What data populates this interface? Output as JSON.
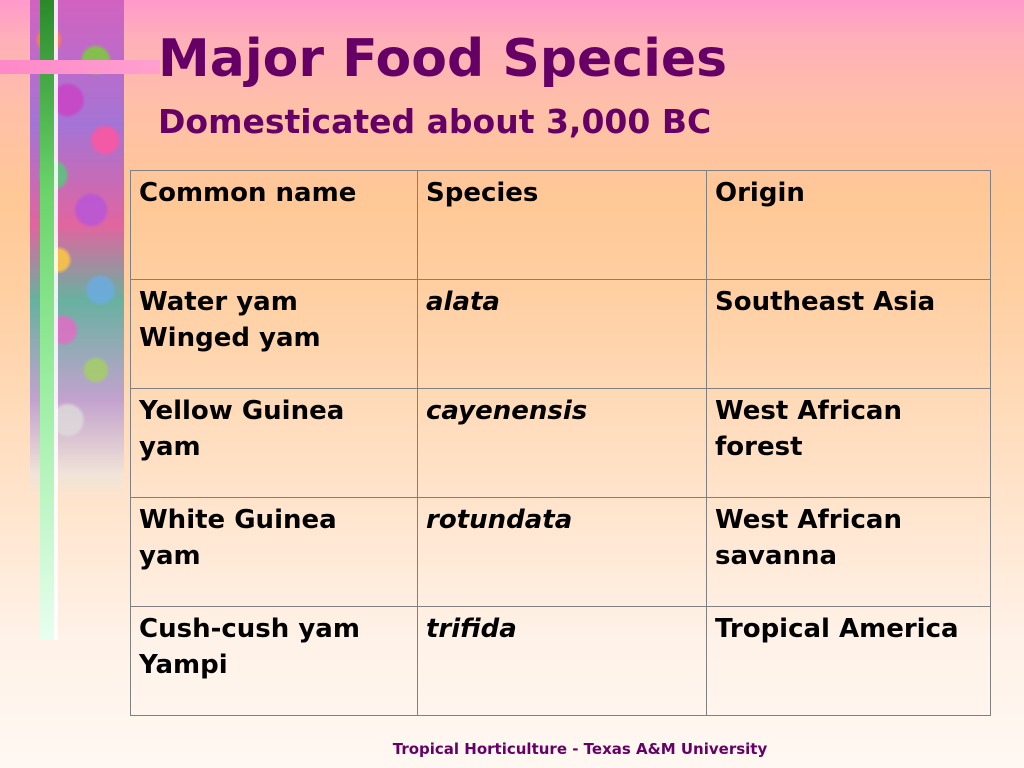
{
  "slide": {
    "title": "Major Food Species",
    "subtitle": "Domesticated about 3,000 BC",
    "footer": "Tropical Horticulture - Texas A&M University"
  },
  "table": {
    "headers": [
      "Common name",
      "Species",
      "Origin"
    ],
    "rows": [
      {
        "common_name": [
          "Water yam",
          "Winged yam"
        ],
        "species": "alata",
        "origin": [
          "Southeast Asia"
        ]
      },
      {
        "common_name": [
          "Yellow Guinea",
          "yam"
        ],
        "species": "cayenensis",
        "origin": [
          "West African",
          "forest"
        ]
      },
      {
        "common_name": [
          "White Guinea",
          "yam"
        ],
        "species": "rotundata",
        "origin": [
          "West African",
          "savanna"
        ]
      },
      {
        "common_name": [
          "Cush-cush yam",
          "Yampi"
        ],
        "species": "trifida",
        "origin": [
          "Tropical America"
        ]
      }
    ]
  }
}
